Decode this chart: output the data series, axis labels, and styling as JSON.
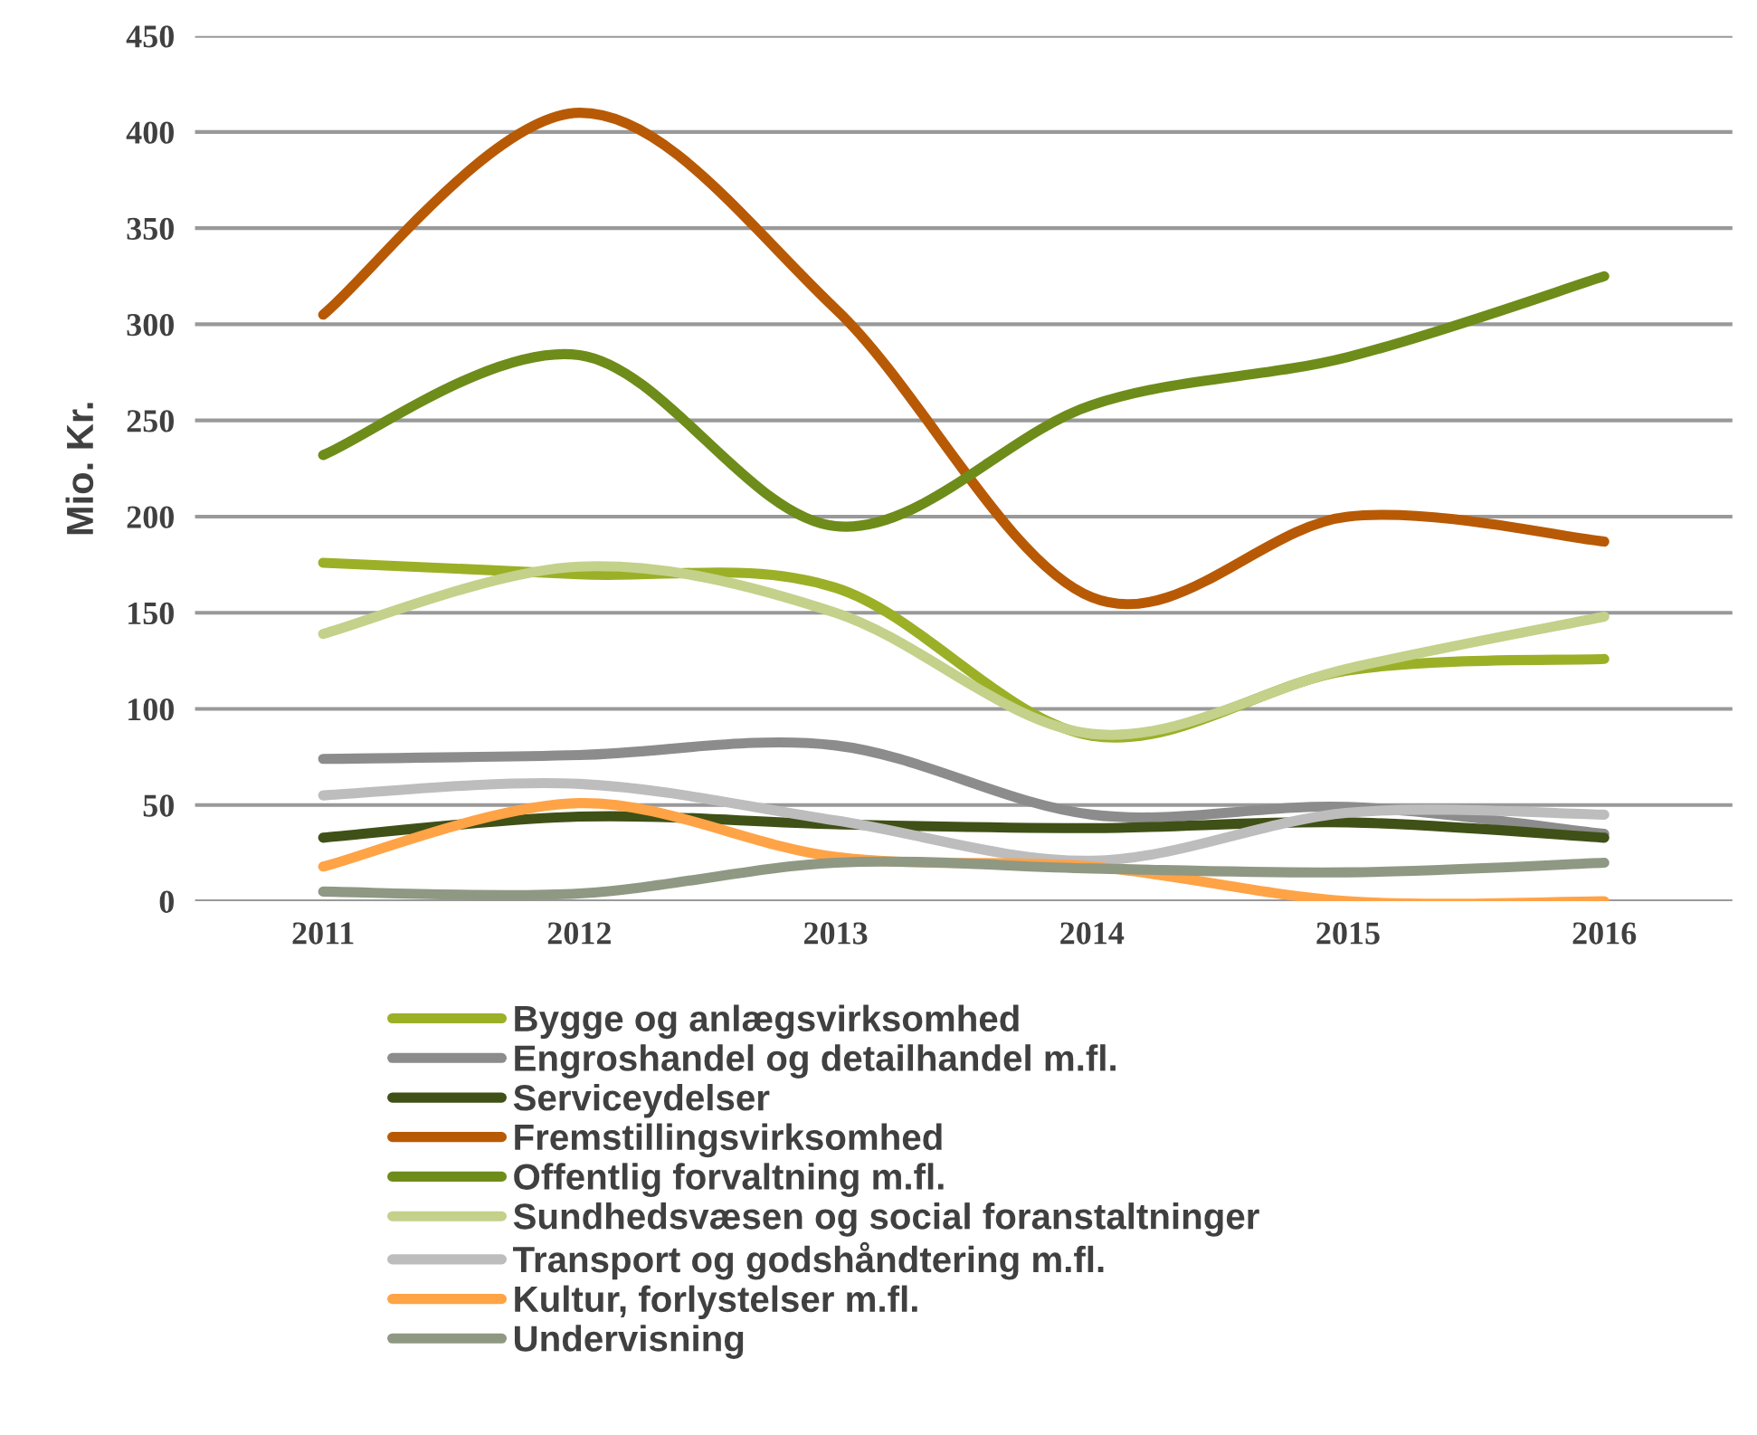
{
  "chart_data": {
    "type": "line",
    "ylabel": "Mio. Kr.",
    "categories": [
      "2011",
      "2012",
      "2013",
      "2014",
      "2015",
      "2016"
    ],
    "ylim": [
      0,
      450
    ],
    "yticks": [
      0,
      50,
      100,
      150,
      200,
      250,
      300,
      350,
      400,
      450
    ],
    "grid": "y",
    "legend": "bottom",
    "marker": "none",
    "line_style": "solid",
    "series": [
      {
        "name": "Bygge og anlægsvirksomhed",
        "color": "#9bb027",
        "values": [
          176,
          170,
          163,
          86,
          120,
          126
        ]
      },
      {
        "name": "Engroshandel og detailhandel m.fl.",
        "color": "#8c8c8c",
        "values": [
          74,
          76,
          81,
          45,
          49,
          35
        ]
      },
      {
        "name": "Serviceydelser",
        "color": "#3f5117",
        "values": [
          33,
          44,
          40,
          38,
          41,
          33
        ]
      },
      {
        "name": "Fremstillingsvirksomhed",
        "color": "#b85a05",
        "values": [
          305,
          410,
          308,
          158,
          200,
          187
        ]
      },
      {
        "name": "Offentlig forvaltning m.fl.",
        "color": "#6e8c1a",
        "values": [
          232,
          284,
          195,
          258,
          283,
          325
        ]
      },
      {
        "name": "Sundhedsvæsen og social foranstaltninger",
        "color": "#c3d18a",
        "values": [
          139,
          174,
          150,
          87,
          121,
          148
        ]
      },
      {
        "name": "Transport og godshåndtering m.fl.",
        "color": "#bdbdbd",
        "values": [
          55,
          61,
          42,
          21,
          46,
          45
        ]
      },
      {
        "name": "Kultur, forlystelser m.fl.",
        "color": "#ffa347",
        "values": [
          18,
          51,
          23,
          18,
          0,
          0
        ]
      },
      {
        "name": "Undervisning",
        "color": "#8f9883",
        "values": [
          5,
          4,
          20,
          17,
          15,
          20
        ]
      }
    ]
  }
}
